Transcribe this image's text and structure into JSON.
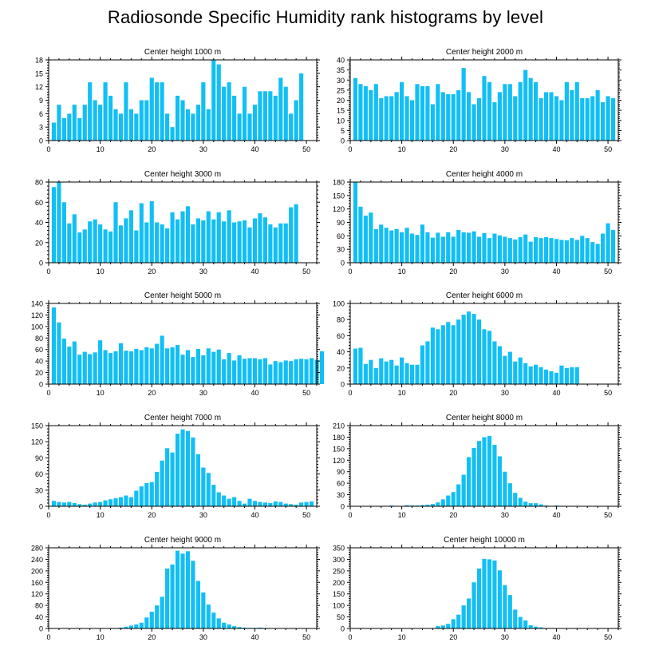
{
  "title": "Radiosonde Specific Humidity rank histograms by level",
  "bar_color": "#12bff5",
  "chart_data": [
    {
      "type": "bar",
      "title": "Center height 1000 m",
      "xlim": [
        0,
        52
      ],
      "xticks": [
        0,
        10,
        20,
        30,
        40,
        50
      ],
      "ylim": [
        0,
        18
      ],
      "yticks": [
        0,
        3,
        6,
        9,
        12,
        15,
        18
      ],
      "values": [
        4,
        8,
        5,
        6,
        8,
        5,
        8,
        13,
        9,
        8,
        13,
        10,
        7,
        6,
        13,
        7,
        6,
        9,
        9,
        14,
        13,
        13,
        6,
        3,
        10,
        9,
        7,
        6,
        8,
        13,
        7,
        18,
        17,
        12,
        13,
        10,
        6,
        12,
        6,
        8,
        11,
        11,
        11,
        10,
        14,
        12,
        6,
        9,
        15
      ]
    },
    {
      "type": "bar",
      "title": "Center height 2000 m",
      "xlim": [
        0,
        52
      ],
      "xticks": [
        0,
        10,
        20,
        30,
        40,
        50
      ],
      "ylim": [
        0,
        40
      ],
      "yticks": [
        0,
        5,
        10,
        15,
        20,
        25,
        30,
        35,
        40
      ],
      "values": [
        31,
        28,
        27,
        25,
        28,
        21,
        22,
        22,
        24,
        29,
        22,
        20,
        28,
        27,
        27,
        18,
        28,
        24,
        23,
        23,
        25,
        36,
        24,
        18,
        21,
        32,
        29,
        19,
        24,
        28,
        28,
        22,
        29,
        35,
        31,
        29,
        21,
        24,
        24,
        22,
        20,
        29,
        25,
        29,
        21,
        21,
        22,
        25,
        19,
        22,
        21
      ]
    },
    {
      "type": "bar",
      "title": "Center height 3000 m",
      "xlim": [
        0,
        52
      ],
      "xticks": [
        0,
        10,
        20,
        30,
        40,
        50
      ],
      "ylim": [
        0,
        80
      ],
      "yticks": [
        0,
        20,
        40,
        60,
        80
      ],
      "values": [
        75,
        80,
        60,
        39,
        48,
        30,
        33,
        41,
        43,
        38,
        33,
        31,
        60,
        37,
        44,
        52,
        32,
        59,
        40,
        61,
        40,
        38,
        34,
        50,
        43,
        51,
        56,
        38,
        44,
        42,
        51,
        43,
        50,
        41,
        52,
        40,
        41,
        42,
        35,
        44,
        49,
        45,
        38,
        35,
        39,
        39,
        55,
        58
      ]
    },
    {
      "type": "bar",
      "title": "Center height 4000 m",
      "xlim": [
        0,
        52
      ],
      "xticks": [
        0,
        10,
        20,
        30,
        40,
        50
      ],
      "ylim": [
        0,
        180
      ],
      "yticks": [
        0,
        30,
        60,
        90,
        120,
        150,
        180
      ],
      "values": [
        180,
        125,
        105,
        112,
        75,
        85,
        78,
        72,
        75,
        68,
        78,
        65,
        62,
        85,
        68,
        56,
        67,
        58,
        68,
        58,
        73,
        68,
        67,
        70,
        58,
        66,
        55,
        65,
        61,
        58,
        55,
        52,
        57,
        63,
        47,
        57,
        55,
        57,
        55,
        53,
        51,
        50,
        55,
        51,
        60,
        55,
        46,
        42,
        65,
        88,
        73
      ]
    },
    {
      "type": "bar",
      "title": "Center height 5000 m",
      "xlim": [
        0,
        52
      ],
      "xticks": [
        0,
        10,
        20,
        30,
        40,
        50
      ],
      "ylim": [
        0,
        140
      ],
      "yticks": [
        0,
        20,
        40,
        60,
        80,
        100,
        120,
        140
      ],
      "values": [
        133,
        107,
        79,
        65,
        74,
        51,
        56,
        52,
        55,
        76,
        59,
        54,
        57,
        71,
        58,
        57,
        61,
        59,
        64,
        62,
        70,
        84,
        62,
        64,
        68,
        51,
        59,
        47,
        61,
        50,
        62,
        56,
        60,
        43,
        54,
        41,
        50,
        44,
        45,
        45,
        43,
        45,
        34,
        40,
        38,
        41,
        40,
        43,
        44,
        43,
        45,
        42,
        57
      ]
    },
    {
      "type": "bar",
      "title": "Center height 6000 m",
      "xlim": [
        0,
        52
      ],
      "xticks": [
        0,
        10,
        20,
        30,
        40,
        50
      ],
      "ylim": [
        0,
        100
      ],
      "yticks": [
        0,
        20,
        40,
        60,
        80,
        100
      ],
      "values": [
        44,
        45,
        25,
        30,
        20,
        32,
        28,
        30,
        23,
        33,
        26,
        24,
        24,
        48,
        53,
        70,
        68,
        73,
        77,
        73,
        80,
        86,
        90,
        87,
        80,
        68,
        66,
        53,
        47,
        35,
        40,
        28,
        33,
        26,
        22,
        24,
        21,
        18,
        16,
        14,
        23,
        20,
        21,
        21
      ]
    },
    {
      "type": "bar",
      "title": "Center height 7000 m",
      "xlim": [
        0,
        52
      ],
      "xticks": [
        0,
        10,
        20,
        30,
        40,
        50
      ],
      "ylim": [
        0,
        150
      ],
      "yticks": [
        0,
        30,
        60,
        90,
        120,
        150
      ],
      "values": [
        10,
        8,
        7,
        8,
        6,
        4,
        3,
        5,
        7,
        8,
        11,
        13,
        15,
        17,
        20,
        17,
        29,
        37,
        43,
        45,
        64,
        85,
        108,
        100,
        135,
        143,
        140,
        128,
        97,
        72,
        62,
        40,
        26,
        20,
        14,
        17,
        10,
        5,
        14,
        10,
        8,
        7,
        6,
        9,
        8,
        5,
        4,
        3,
        7,
        8,
        9
      ]
    },
    {
      "type": "bar",
      "title": "Center height 8000 m",
      "xlim": [
        0,
        52
      ],
      "xticks": [
        0,
        10,
        20,
        30,
        40,
        50
      ],
      "ylim": [
        0,
        210
      ],
      "yticks": [
        0,
        30,
        60,
        90,
        120,
        150,
        180,
        210
      ],
      "values": [
        0,
        0,
        0,
        0,
        0,
        1,
        0,
        2,
        0,
        0,
        3,
        2,
        2,
        3,
        4,
        6,
        10,
        18,
        28,
        37,
        57,
        82,
        128,
        152,
        170,
        180,
        183,
        160,
        130,
        90,
        60,
        35,
        22,
        12,
        8,
        8,
        5,
        2,
        1,
        2,
        1,
        0,
        0,
        0,
        0,
        0,
        0,
        0,
        0,
        0,
        0
      ]
    },
    {
      "type": "bar",
      "title": "Center height 9000 m",
      "xlim": [
        0,
        52
      ],
      "xticks": [
        0,
        10,
        20,
        30,
        40,
        50
      ],
      "ylim": [
        0,
        280
      ],
      "yticks": [
        0,
        40,
        80,
        120,
        160,
        200,
        240,
        280
      ],
      "values": [
        0,
        0,
        0,
        0,
        0,
        0,
        0,
        0,
        0,
        0,
        0,
        0,
        1,
        3,
        6,
        10,
        14,
        20,
        38,
        58,
        80,
        110,
        208,
        222,
        270,
        260,
        268,
        235,
        165,
        125,
        83,
        55,
        35,
        20,
        14,
        8,
        5,
        3,
        2,
        2,
        3,
        2,
        1,
        0,
        0,
        0,
        0,
        0,
        0,
        0,
        0
      ]
    },
    {
      "type": "bar",
      "title": "Center height 10000 m",
      "xlim": [
        0,
        52
      ],
      "xticks": [
        0,
        10,
        20,
        30,
        40,
        50
      ],
      "ylim": [
        0,
        350
      ],
      "yticks": [
        0,
        50,
        100,
        150,
        200,
        250,
        300,
        350
      ],
      "values": [
        0,
        0,
        0,
        0,
        0,
        0,
        0,
        0,
        0,
        0,
        0,
        0,
        0,
        0,
        0,
        0,
        10,
        13,
        20,
        40,
        60,
        100,
        130,
        200,
        260,
        302,
        300,
        295,
        252,
        188,
        145,
        82,
        50,
        35,
        14,
        8,
        5,
        2,
        1,
        0,
        0,
        0,
        0,
        0,
        0,
        0,
        0,
        0,
        0,
        0,
        0
      ]
    }
  ]
}
